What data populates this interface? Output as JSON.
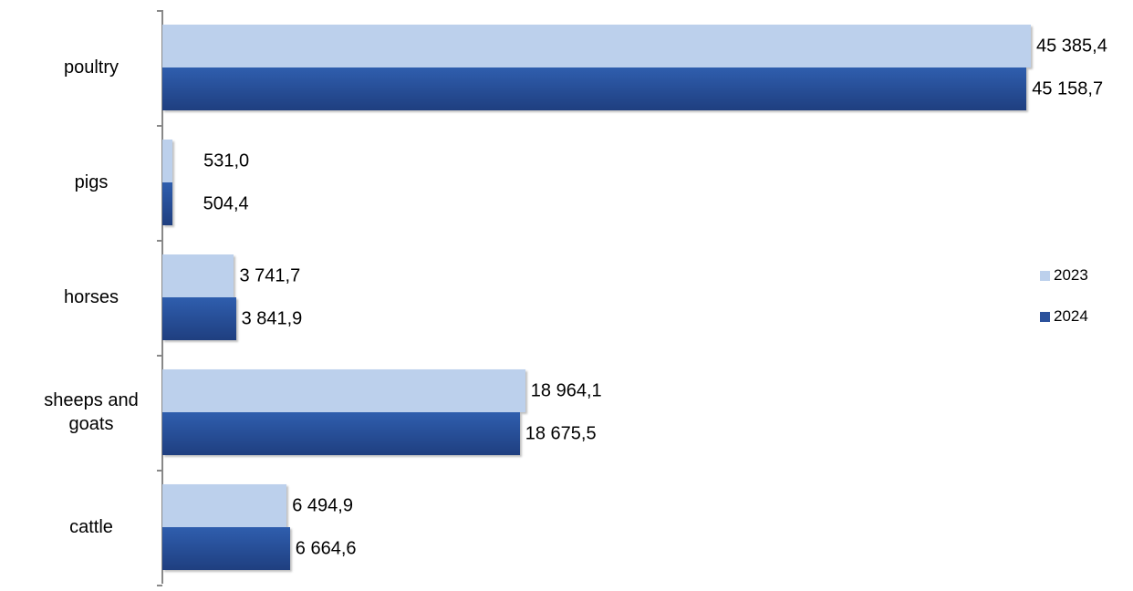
{
  "chart_data": {
    "type": "hbar",
    "categories": [
      "poultry",
      "pigs",
      "horses",
      "sheeps and goats",
      "cattle"
    ],
    "series": [
      {
        "name": "2023",
        "color": "#bcd0ec",
        "values": [
          45385.4,
          531.0,
          3741.7,
          18964.1,
          6494.9
        ],
        "value_labels": [
          "45 385,4",
          "531,0",
          "3 741,7",
          "18 964,1",
          "6 494,9"
        ]
      },
      {
        "name": "2024",
        "color": "#2b519b",
        "values": [
          45158.7,
          504.4,
          3841.9,
          18675.5,
          6664.6
        ],
        "value_labels": [
          "45 158,7",
          "504,4",
          "3 841,9",
          "18 675,5",
          "6 664,6"
        ]
      }
    ],
    "legend": "right"
  }
}
